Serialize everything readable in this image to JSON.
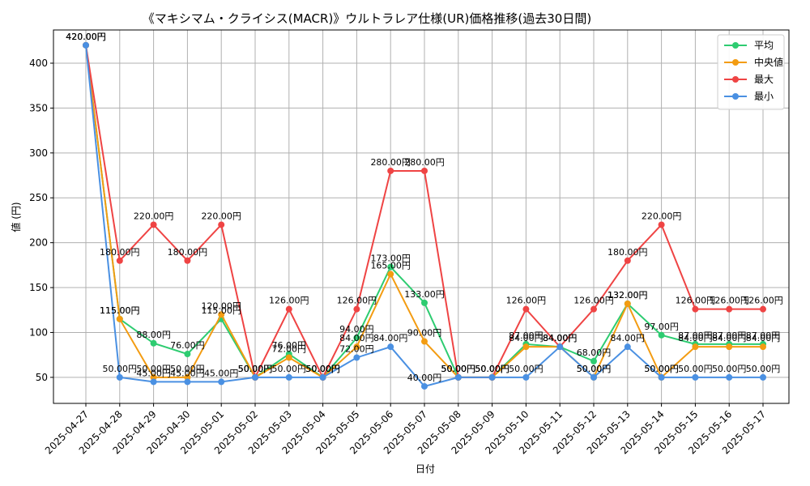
{
  "chart_data": {
    "type": "line",
    "title": "《マキシマム・クライシス(MACR)》ウルトラレア仕様(UR)価格推移(過去30日間)",
    "xlabel": "日付",
    "ylabel": "値 (円)",
    "ylim": [
      21,
      437
    ],
    "yticks": [
      50,
      100,
      150,
      200,
      250,
      300,
      350,
      400
    ],
    "grid": true,
    "legend_position": "top-right",
    "value_suffix": "円",
    "categories": [
      "2025-04-27",
      "2025-04-28",
      "2025-04-29",
      "2025-04-30",
      "2025-05-01",
      "2025-05-02",
      "2025-05-03",
      "2025-05-04",
      "2025-05-05",
      "2025-05-06",
      "2025-05-07",
      "2025-05-08",
      "2025-05-09",
      "2025-05-10",
      "2025-05-11",
      "2025-05-12",
      "2025-05-13",
      "2025-05-14",
      "2025-05-15",
      "2025-05-16",
      "2025-05-17"
    ],
    "series": [
      {
        "name": "平均",
        "color": "#2ecc71",
        "values": [
          420,
          115,
          88,
          76,
          115,
          50,
          76,
          50,
          94,
          173,
          133,
          50,
          50,
          87,
          84,
          68,
          132,
          97,
          87,
          87,
          87
        ]
      },
      {
        "name": "中央値",
        "color": "#f39c12",
        "values": [
          420,
          115,
          50,
          50,
          120,
          50,
          72,
          50,
          84,
          165,
          90,
          50,
          50,
          84,
          84,
          50,
          132,
          50,
          84,
          84,
          84
        ]
      },
      {
        "name": "最大",
        "color": "#ef4444",
        "values": [
          420,
          180,
          220,
          180,
          220,
          50,
          126,
          50,
          126,
          280,
          280,
          50,
          50,
          126,
          84,
          126,
          180,
          220,
          126,
          126,
          126
        ]
      },
      {
        "name": "最小",
        "color": "#4a90e2",
        "values": [
          420,
          50,
          45,
          45,
          45,
          50,
          50,
          50,
          72,
          84,
          40,
          50,
          50,
          50,
          84,
          50,
          84,
          50,
          50,
          50,
          50
        ]
      }
    ]
  }
}
